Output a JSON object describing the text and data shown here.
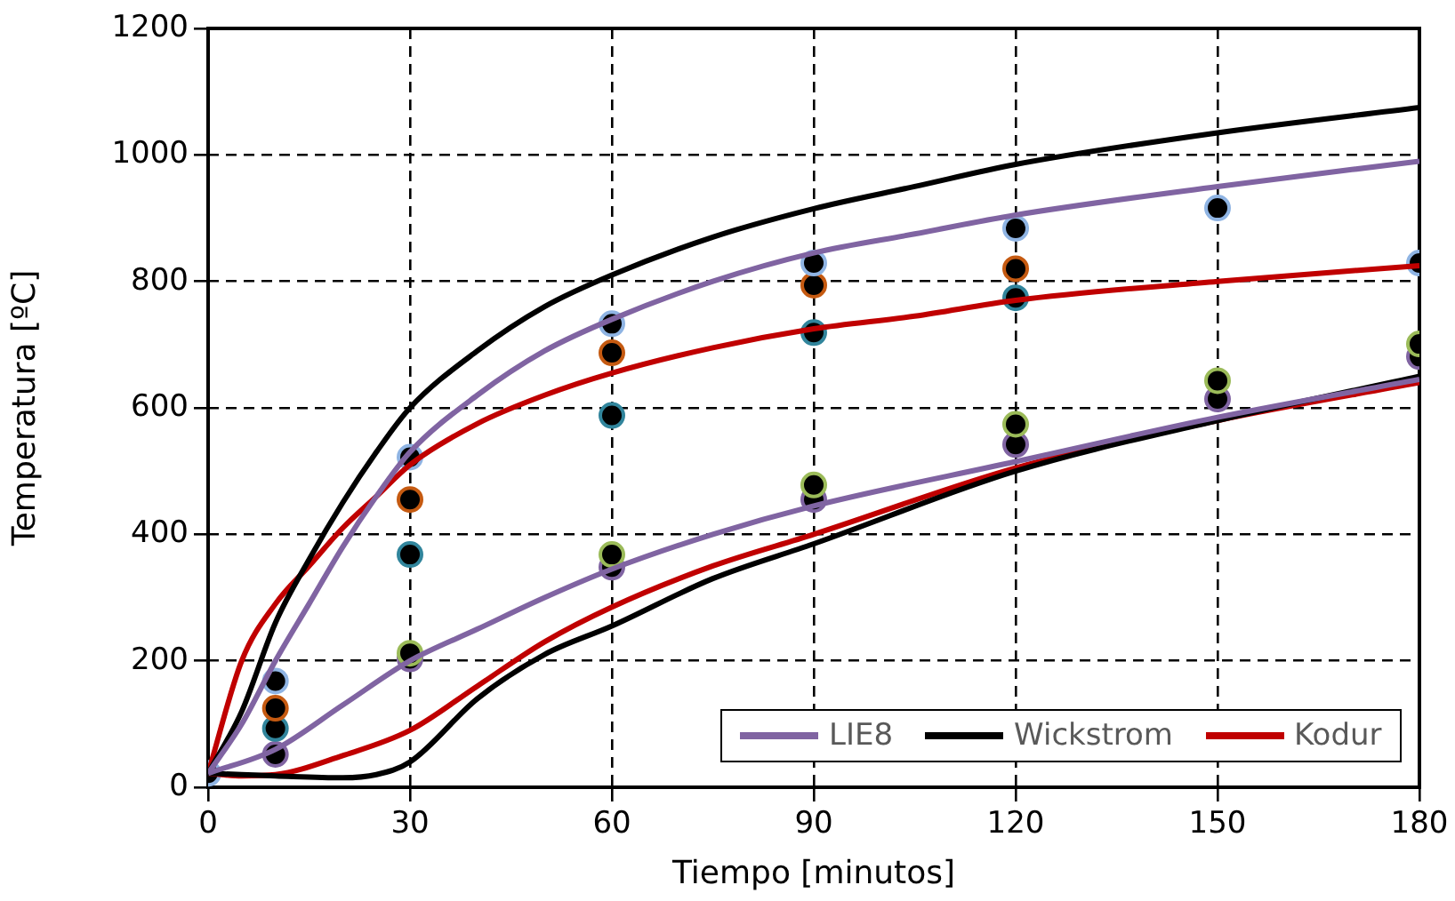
{
  "chart_data": {
    "type": "line",
    "xlabel": "Tiempo [minutos]",
    "ylabel": "Temperatura [ºC]",
    "xlim": [
      0,
      180
    ],
    "xticks": [
      0,
      30,
      60,
      90,
      120,
      150,
      180
    ],
    "ylim": [
      0,
      1200
    ],
    "yticks": [
      0,
      200,
      400,
      600,
      800,
      1000,
      1200
    ],
    "grid": true,
    "legend": "bottom right",
    "line_style": "solid",
    "series": [
      {
        "name": "LIE8",
        "marker": "none",
        "color": "#8064a2",
        "x": [
          0,
          5,
          10,
          15,
          20,
          25,
          30,
          40,
          50,
          60,
          75,
          90,
          105,
          120,
          150,
          180
        ],
        "values": [
          22,
          100,
          200,
          290,
          380,
          460,
          530,
          620,
          690,
          740,
          800,
          845,
          875,
          905,
          950,
          990
        ]
      },
      {
        "marker": "none",
        "color": "#8064a2",
        "x": [
          0,
          10,
          20,
          30,
          40,
          50,
          60,
          75,
          90,
          120,
          150,
          180
        ],
        "values": [
          22,
          60,
          130,
          200,
          250,
          300,
          345,
          400,
          445,
          515,
          585,
          645
        ]
      },
      {
        "name": "Wickstrom",
        "marker": "none",
        "color": "#000000",
        "x": [
          0,
          5,
          10,
          15,
          20,
          25,
          30,
          40,
          50,
          60,
          75,
          90,
          105,
          120,
          150,
          180
        ],
        "values": [
          22,
          120,
          260,
          360,
          450,
          530,
          600,
          690,
          760,
          810,
          870,
          915,
          950,
          985,
          1035,
          1075
        ]
      },
      {
        "marker": "none",
        "color": "#000000",
        "x": [
          0,
          5,
          10,
          20,
          25,
          30,
          40,
          50,
          60,
          75,
          90,
          120,
          150,
          180
        ],
        "values": [
          22,
          20,
          18,
          15,
          20,
          40,
          140,
          210,
          255,
          330,
          385,
          500,
          580,
          650
        ]
      },
      {
        "name": "Kodur",
        "marker": "none",
        "color": "#c00000",
        "x": [
          0,
          5,
          10,
          15,
          20,
          25,
          30,
          40,
          50,
          60,
          75,
          90,
          105,
          120,
          150,
          180
        ],
        "values": [
          22,
          200,
          290,
          350,
          410,
          460,
          510,
          575,
          620,
          655,
          695,
          725,
          745,
          770,
          800,
          825
        ]
      },
      {
        "marker": "none",
        "color": "#c00000",
        "x": [
          0,
          5,
          10,
          20,
          30,
          40,
          50,
          60,
          75,
          90,
          120,
          150,
          180
        ],
        "values": [
          22,
          18,
          20,
          50,
          90,
          160,
          230,
          285,
          350,
          400,
          505,
          580,
          640
        ]
      },
      {
        "type": "scatter",
        "marker": "circle",
        "color": "#8fb4e3",
        "x": [
          0,
          10,
          30,
          60,
          90,
          120,
          150,
          180
        ],
        "values": [
          22,
          168,
          522,
          733,
          829,
          884,
          916,
          829
        ]
      },
      {
        "type": "scatter",
        "marker": "circle",
        "color": "#c55a11",
        "x": [
          10,
          30,
          60,
          90,
          120
        ],
        "values": [
          125,
          455,
          687,
          794,
          820
        ]
      },
      {
        "type": "scatter",
        "marker": "circle",
        "color": "#31859c",
        "x": [
          10,
          30,
          60,
          90,
          120
        ],
        "values": [
          93,
          368,
          588,
          719,
          774
        ]
      },
      {
        "type": "scatter",
        "marker": "circle",
        "color": "#9bbb59",
        "x": [
          30,
          60,
          90,
          120,
          150,
          180
        ],
        "values": [
          212,
          368,
          478,
          574,
          643,
          701
        ]
      },
      {
        "type": "scatter",
        "marker": "circle",
        "color": "#8064a2",
        "x": [
          10,
          30,
          60,
          90,
          120,
          150,
          180
        ],
        "values": [
          52,
          203,
          348,
          455,
          542,
          614,
          681
        ]
      }
    ]
  }
}
